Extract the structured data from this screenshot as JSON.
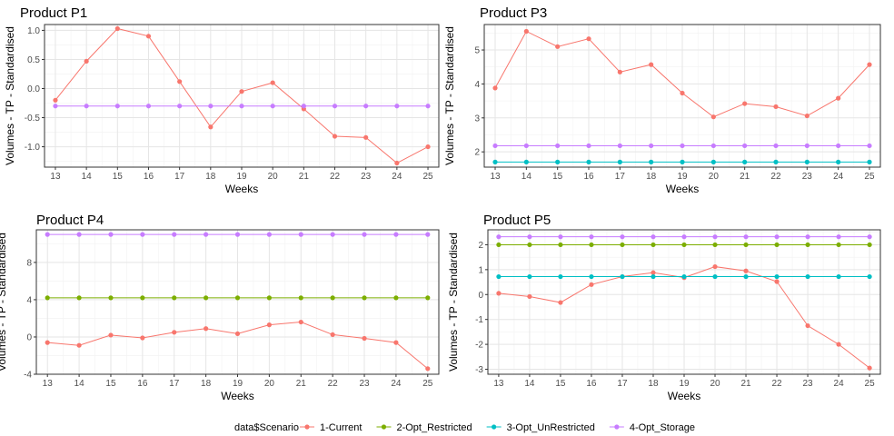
{
  "legend": {
    "title": "data$Scenario",
    "entries": [
      {
        "label": "1-Current",
        "color": "#f8766d"
      },
      {
        "label": "2-Opt_Restricted",
        "color": "#7cae00"
      },
      {
        "label": "3-Opt_UnRestricted",
        "color": "#00bfc4"
      },
      {
        "label": "4-Opt_Storage",
        "color": "#c77cff"
      }
    ]
  },
  "chart_data": [
    {
      "type": "line",
      "title": "Product P1",
      "xlabel": "Weeks",
      "ylabel": "Volumes - TP - Standardised",
      "x": [
        13,
        14,
        15,
        16,
        17,
        18,
        19,
        20,
        21,
        22,
        23,
        24,
        25
      ],
      "xlim": [
        12.65,
        25.35
      ],
      "ylim": [
        -1.35,
        1.1
      ],
      "yticks": [
        -1.0,
        -0.5,
        0.0,
        0.5,
        1.0
      ],
      "ytick_labels": [
        "-1.0",
        "-0.5",
        "0.0",
        "0.5",
        "1.0"
      ],
      "grid": true,
      "series": [
        {
          "name": "1-Current",
          "values": [
            -0.2,
            0.47,
            1.03,
            0.9,
            0.12,
            -0.66,
            -0.05,
            0.1,
            -0.35,
            -0.82,
            -0.84,
            -1.28,
            -1.0
          ]
        },
        {
          "name": "4-Opt_Storage",
          "values": [
            -0.3,
            -0.3,
            -0.3,
            -0.3,
            -0.3,
            -0.3,
            -0.3,
            -0.3,
            -0.3,
            -0.3,
            -0.3,
            -0.3,
            -0.3
          ]
        }
      ]
    },
    {
      "type": "line",
      "title": "Product P3",
      "xlabel": "Weeks",
      "ylabel": "Volumes - TP - Standardised",
      "x": [
        13,
        14,
        15,
        16,
        17,
        18,
        19,
        20,
        21,
        22,
        23,
        24,
        25
      ],
      "xlim": [
        12.65,
        25.35
      ],
      "ylim": [
        1.55,
        5.75
      ],
      "yticks": [
        2,
        3,
        4,
        5
      ],
      "ytick_labels": [
        "2",
        "3",
        "4",
        "5"
      ],
      "grid": true,
      "series": [
        {
          "name": "1-Current",
          "values": [
            3.88,
            5.55,
            5.1,
            5.33,
            4.35,
            4.57,
            3.73,
            3.03,
            3.42,
            3.33,
            3.06,
            3.58,
            4.57
          ]
        },
        {
          "name": "3-Opt_UnRestricted",
          "values": [
            1.7,
            1.7,
            1.7,
            1.7,
            1.7,
            1.7,
            1.7,
            1.7,
            1.7,
            1.7,
            1.7,
            1.7,
            1.7
          ]
        },
        {
          "name": "4-Opt_Storage",
          "values": [
            2.18,
            2.18,
            2.18,
            2.18,
            2.18,
            2.18,
            2.18,
            2.18,
            2.18,
            2.18,
            2.18,
            2.18,
            2.18
          ]
        }
      ]
    },
    {
      "type": "line",
      "title": "Product P4",
      "xlabel": "Weeks",
      "ylabel": "Volumes - TP - Standardised",
      "x": [
        13,
        14,
        15,
        16,
        17,
        18,
        19,
        20,
        21,
        22,
        23,
        24,
        25
      ],
      "xlim": [
        12.65,
        25.35
      ],
      "ylim": [
        -4.0,
        11.5
      ],
      "yticks": [
        -4,
        0,
        4,
        8
      ],
      "ytick_labels": [
        "-4",
        "0",
        "4",
        "8"
      ],
      "grid": true,
      "series": [
        {
          "name": "1-Current",
          "values": [
            -0.6,
            -0.9,
            0.2,
            -0.1,
            0.5,
            0.9,
            0.35,
            1.3,
            1.6,
            0.25,
            -0.15,
            -0.6,
            -3.4
          ]
        },
        {
          "name": "2-Opt_Restricted",
          "values": [
            4.2,
            4.2,
            4.2,
            4.2,
            4.2,
            4.2,
            4.2,
            4.2,
            4.2,
            4.2,
            4.2,
            4.2,
            4.2
          ]
        },
        {
          "name": "4-Opt_Storage",
          "values": [
            11.0,
            11.0,
            11.0,
            11.0,
            11.0,
            11.0,
            11.0,
            11.0,
            11.0,
            11.0,
            11.0,
            11.0,
            11.0
          ]
        }
      ]
    },
    {
      "type": "line",
      "title": "Product P5",
      "xlabel": "Weeks",
      "ylabel": "Volumes - TP - Standardised",
      "x": [
        13,
        14,
        15,
        16,
        17,
        18,
        19,
        20,
        21,
        22,
        23,
        24,
        25
      ],
      "xlim": [
        12.65,
        25.35
      ],
      "ylim": [
        -3.2,
        2.6
      ],
      "yticks": [
        -3,
        -2,
        -1,
        0,
        1,
        2
      ],
      "ytick_labels": [
        "-3",
        "-2",
        "-1",
        "0",
        "1",
        "2"
      ],
      "grid": true,
      "series": [
        {
          "name": "1-Current",
          "values": [
            0.05,
            -0.08,
            -0.32,
            0.4,
            0.72,
            0.88,
            0.68,
            1.12,
            0.95,
            0.52,
            -1.25,
            -2.0,
            -2.95
          ]
        },
        {
          "name": "2-Opt_Restricted",
          "values": [
            2.0,
            2.0,
            2.0,
            2.0,
            2.0,
            2.0,
            2.0,
            2.0,
            2.0,
            2.0,
            2.0,
            2.0,
            2.0
          ]
        },
        {
          "name": "3-Opt_UnRestricted",
          "values": [
            0.72,
            0.72,
            0.72,
            0.72,
            0.72,
            0.72,
            0.72,
            0.72,
            0.72,
            0.72,
            0.72,
            0.72,
            0.72
          ]
        },
        {
          "name": "4-Opt_Storage",
          "values": [
            2.32,
            2.32,
            2.32,
            2.32,
            2.32,
            2.32,
            2.32,
            2.32,
            2.32,
            2.32,
            2.32,
            2.32,
            2.32
          ]
        }
      ]
    }
  ]
}
